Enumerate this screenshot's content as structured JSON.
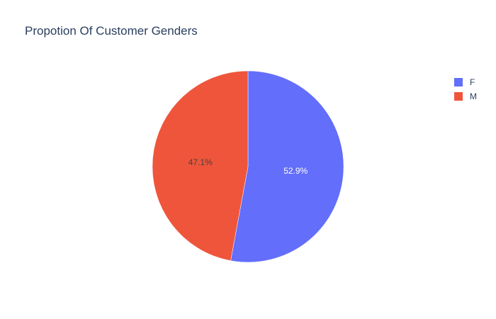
{
  "chart_data": {
    "type": "pie",
    "title": "Propotion Of Customer Genders",
    "categories": [
      "F",
      "M"
    ],
    "values": [
      52.9,
      47.1
    ],
    "value_labels": [
      "52.9%",
      "47.1%"
    ],
    "colors": [
      "#636efa",
      "#ef553b"
    ],
    "label_colors": [
      "#ffffff",
      "#444444"
    ],
    "legend_position": "top-right",
    "start": "12 o'clock",
    "direction": "clockwise"
  }
}
